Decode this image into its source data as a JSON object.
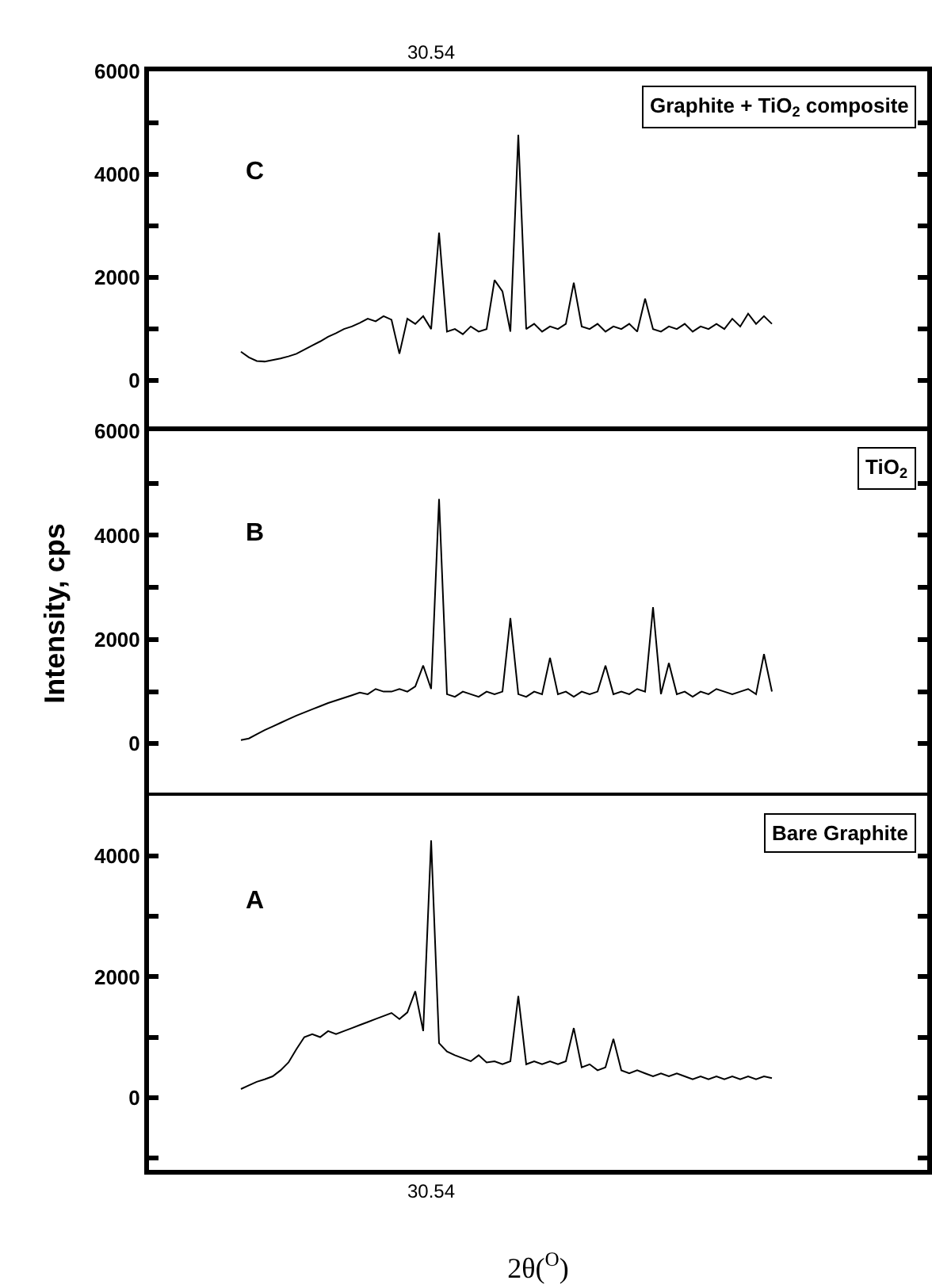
{
  "chart_data": [
    {
      "type": "line",
      "color": "#000000",
      "categories": [
        null,
        null,
        null,
        null,
        null,
        null,
        null,
        null,
        null,
        null,
        null,
        null,
        null,
        null,
        null,
        null,
        null,
        null,
        null,
        null,
        null,
        null,
        null,
        null,
        null,
        null,
        null,
        null,
        null,
        null,
        null,
        null,
        null,
        null,
        null,
        "30.54",
        null,
        null,
        null,
        null,
        null,
        null,
        null,
        null,
        null,
        null,
        null,
        null,
        null,
        null,
        null,
        null,
        null,
        null,
        null,
        null,
        null,
        null,
        null,
        null,
        null,
        null,
        null,
        null,
        null,
        null,
        null,
        null,
        null,
        null,
        null,
        null,
        null,
        null,
        null,
        null,
        null,
        null,
        null,
        null,
        null,
        null,
        null,
        null,
        null,
        null,
        null,
        null,
        null,
        null,
        null,
        null,
        null,
        null,
        null,
        null,
        null,
        null
      ],
      "values": [
        null,
        null,
        null,
        null,
        null,
        null,
        null,
        null,
        null,
        null,
        null,
        560,
        450,
        380,
        370,
        400,
        430,
        470,
        520,
        600,
        680,
        760,
        850,
        920,
        1000,
        1050,
        1120,
        1200,
        1150,
        1250,
        1180,
        520,
        1200,
        1100,
        1250,
        1000,
        2870,
        950,
        1000,
        900,
        1050,
        950,
        1000,
        1950,
        1730,
        950,
        4770,
        1000,
        1100,
        950,
        1050,
        1000,
        1100,
        1900,
        1050,
        1000,
        1100,
        950,
        1050,
        1000,
        1100,
        950,
        1590,
        1000,
        950,
        1050,
        1000,
        1100,
        950,
        1050,
        1000,
        1100,
        1000,
        1200,
        1050,
        1300,
        1100,
        1250,
        1100,
        null,
        null,
        null,
        null,
        null,
        null,
        null,
        null,
        null,
        null,
        null,
        null,
        null,
        null,
        null,
        null,
        null,
        null,
        null
      ],
      "ylim": [
        -920,
        6000
      ],
      "yticks": [
        0,
        {
          "value": 1000,
          "label": null
        },
        2000,
        {
          "value": 3000,
          "label": null
        },
        4000,
        {
          "value": 5000,
          "label": null
        },
        6000
      ],
      "annotations": [
        "C",
        "Graphite + TiO$_{2}$ composite"
      ]
    },
    {
      "type": "line",
      "color": "#000000",
      "ylabel": "Intensity, cps",
      "tick_labels": "y",
      "categories": [
        null,
        null,
        null,
        null,
        null,
        null,
        null,
        null,
        null,
        null,
        null,
        null,
        null,
        null,
        null,
        null,
        null,
        null,
        null,
        null,
        null,
        null,
        null,
        null,
        null,
        null,
        null,
        null,
        null,
        null,
        null,
        null,
        null,
        null,
        null,
        null,
        null,
        null,
        null,
        null,
        null,
        null,
        null,
        null,
        null,
        null,
        null,
        null,
        null,
        null,
        null,
        null,
        null,
        null,
        null,
        null,
        null,
        null,
        null,
        null,
        null,
        null,
        null,
        null,
        null,
        null,
        null,
        null,
        null,
        null,
        null,
        null,
        null,
        null,
        null,
        null,
        null,
        null,
        null,
        null,
        null,
        null,
        null,
        null,
        null,
        null,
        null,
        null,
        null,
        null,
        null,
        null,
        null,
        null,
        null,
        null,
        null,
        null
      ],
      "values": [
        null,
        null,
        null,
        null,
        null,
        null,
        null,
        null,
        null,
        null,
        null,
        70,
        100,
        180,
        260,
        330,
        400,
        470,
        540,
        600,
        660,
        720,
        780,
        830,
        880,
        930,
        980,
        950,
        1050,
        1000,
        1000,
        1050,
        1000,
        1100,
        1500,
        1050,
        4700,
        950,
        900,
        1000,
        950,
        900,
        1000,
        950,
        1000,
        2410,
        950,
        900,
        1000,
        950,
        1650,
        950,
        1000,
        900,
        1000,
        950,
        1000,
        1500,
        950,
        1000,
        950,
        1050,
        1000,
        2620,
        950,
        1550,
        950,
        1000,
        900,
        1000,
        950,
        1050,
        1000,
        950,
        1000,
        1050,
        950,
        1720,
        1000,
        null,
        null,
        null,
        null,
        null,
        null,
        null,
        null,
        null,
        null,
        null,
        null,
        null,
        null,
        null,
        null,
        null,
        null,
        null
      ],
      "ylim": [
        -1000,
        6000
      ],
      "yticks": [
        0,
        {
          "value": 1000,
          "label": null
        },
        2000,
        {
          "value": 3000,
          "label": null
        },
        4000,
        {
          "value": 5000,
          "label": null
        },
        6000
      ],
      "annotations": [
        "B",
        "TiO$_{2}$"
      ]
    },
    {
      "type": "line",
      "color": "#000000",
      "xlabel": "2θ($^{O}$)",
      "categories": [
        null,
        null,
        null,
        null,
        null,
        null,
        null,
        null,
        null,
        null,
        null,
        null,
        null,
        null,
        null,
        null,
        null,
        null,
        null,
        null,
        null,
        null,
        null,
        null,
        null,
        null,
        null,
        null,
        null,
        null,
        null,
        null,
        null,
        null,
        null,
        "30.54",
        null,
        null,
        null,
        null,
        null,
        null,
        null,
        null,
        null,
        null,
        null,
        null,
        null,
        null,
        null,
        null,
        null,
        null,
        null,
        null,
        null,
        null,
        null,
        null,
        null,
        null,
        null,
        null,
        null,
        null,
        null,
        null,
        null,
        null,
        null,
        null,
        null,
        null,
        null,
        null,
        null,
        null,
        null,
        null,
        null,
        null,
        null,
        null,
        null,
        null,
        null,
        null,
        null,
        null,
        null,
        null,
        null,
        null,
        null,
        null,
        null,
        null
      ],
      "values": [
        null,
        null,
        null,
        null,
        null,
        null,
        null,
        null,
        null,
        null,
        null,
        140,
        200,
        260,
        300,
        350,
        450,
        580,
        800,
        1000,
        1050,
        1000,
        1100,
        1050,
        1100,
        1150,
        1200,
        1250,
        1300,
        1350,
        1400,
        1300,
        1410,
        1760,
        1100,
        4260,
        900,
        760,
        700,
        650,
        600,
        700,
        580,
        600,
        550,
        600,
        1680,
        550,
        600,
        550,
        600,
        550,
        600,
        1150,
        500,
        550,
        450,
        500,
        970,
        450,
        400,
        450,
        400,
        350,
        400,
        350,
        400,
        350,
        300,
        350,
        300,
        350,
        300,
        350,
        300,
        350,
        300,
        350,
        320,
        null,
        null,
        null,
        null,
        null,
        null,
        null,
        null,
        null,
        null,
        null,
        null,
        null,
        null,
        null,
        null,
        null,
        null,
        null
      ],
      "ylim": [
        -1200,
        5000
      ],
      "yticks": [
        {
          "value": -1000,
          "label": null
        },
        0,
        {
          "value": 1000,
          "label": null
        },
        2000,
        {
          "value": 3000,
          "label": null
        },
        4000
      ],
      "annotations": [
        "A",
        "Bare Graphite"
      ]
    }
  ]
}
